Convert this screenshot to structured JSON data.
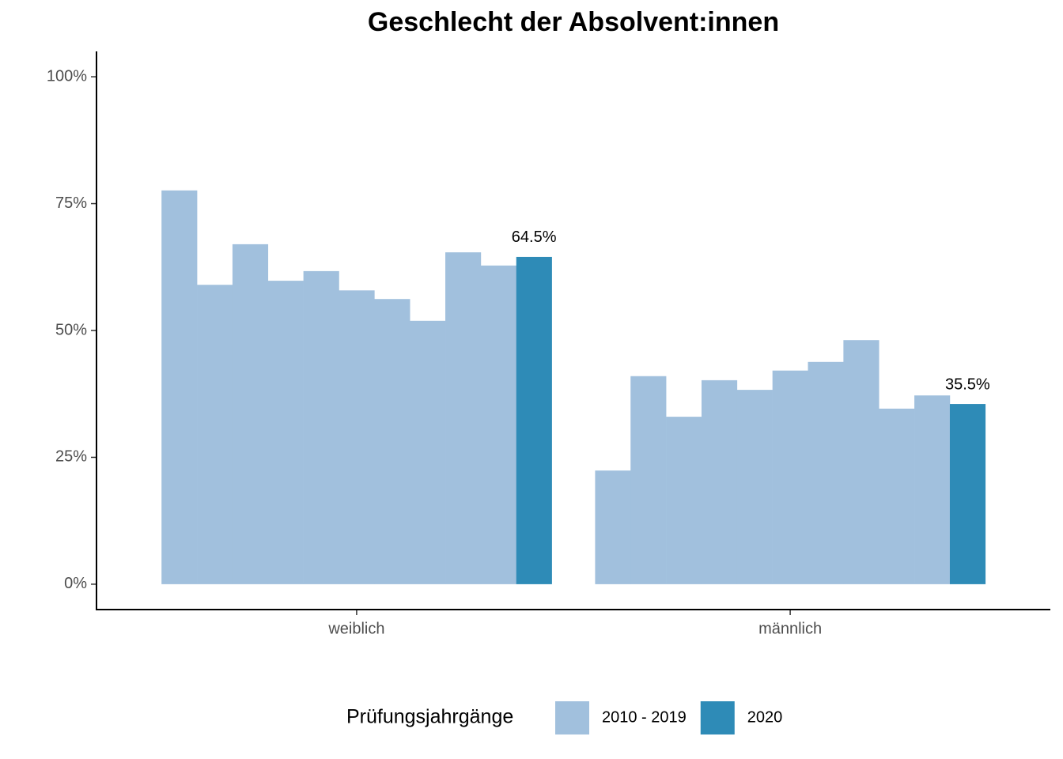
{
  "chart_data": {
    "type": "grouped-bar",
    "title": "Geschlecht der Absolvent:innen",
    "categories": [
      "weiblich",
      "männlich"
    ],
    "series": [
      {
        "name": "2010 - 2019",
        "color": "#a1c0dd",
        "values": [
          [
            77.6,
            59.0,
            67.0,
            59.8,
            61.7,
            57.9,
            56.2,
            51.9,
            65.4,
            62.8
          ],
          [
            22.4,
            41.0,
            33.0,
            40.2,
            38.3,
            42.1,
            43.8,
            48.1,
            34.6,
            37.2
          ]
        ]
      },
      {
        "name": "2020",
        "color": "#2e8bb7",
        "values": [
          64.5,
          35.5
        ],
        "value_labels": [
          "64.5%",
          "35.5%"
        ]
      }
    ],
    "legend_title": "Prüfungsjahrgänge",
    "legend": "bottom",
    "ylim": [
      -5,
      105
    ],
    "yticks": [
      {
        "value": 0,
        "label": "0%"
      },
      {
        "value": 25,
        "label": "25%"
      },
      {
        "value": 50,
        "label": "50%"
      },
      {
        "value": 75,
        "label": "75%"
      },
      {
        "value": 100,
        "label": "100%"
      }
    ],
    "grid": false
  }
}
